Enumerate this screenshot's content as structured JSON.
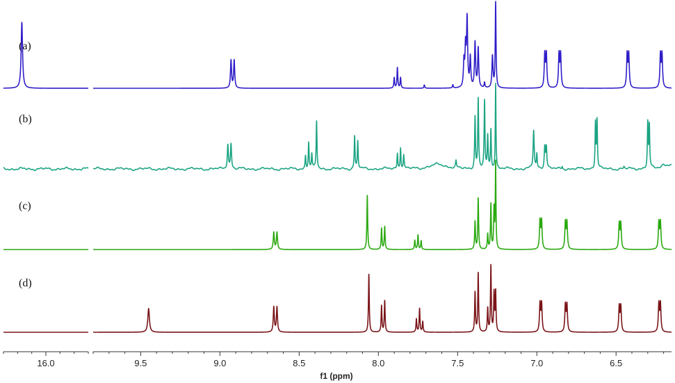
{
  "chart_data": {
    "type": "line",
    "title": "",
    "xlabel": "f1 (ppm)",
    "ylabel": "",
    "x_reversed": true,
    "axis_break": {
      "from": 15.7,
      "to": 9.8
    },
    "segments": [
      {
        "xlim": [
          16.3,
          15.7
        ]
      },
      {
        "xlim": [
          9.8,
          6.15
        ]
      }
    ],
    "ticks": [
      {
        "value": 16.0,
        "label": "16.0"
      },
      {
        "value": 9.5,
        "label": "9.5"
      },
      {
        "value": 9.0,
        "label": "9.0"
      },
      {
        "value": 8.5,
        "label": "8.5"
      },
      {
        "value": 8.0,
        "label": "8.0"
      },
      {
        "value": 7.5,
        "label": "7.5"
      },
      {
        "value": 7.0,
        "label": "7.0"
      },
      {
        "value": 6.5,
        "label": "6.5"
      }
    ],
    "grid": false,
    "series": [
      {
        "label": "(a)",
        "color": "#2f1ec8",
        "noise": 0,
        "peaks": [
          [
            16.17,
            1,
            0.006
          ],
          [
            8.93,
            0.42,
            0.004
          ],
          [
            8.91,
            0.42,
            0.004
          ],
          [
            7.9,
            0.16,
            0.003
          ],
          [
            7.88,
            0.31,
            0.003
          ],
          [
            7.86,
            0.16,
            0.003
          ],
          [
            7.71,
            0.05,
            0.003
          ],
          [
            7.53,
            0.05,
            0.003
          ],
          [
            7.46,
            0.38,
            0.004
          ],
          [
            7.45,
            0.58,
            0.004
          ],
          [
            7.44,
            1.02,
            0.004
          ],
          [
            7.42,
            0.45,
            0.004
          ],
          [
            7.39,
            0.68,
            0.004
          ],
          [
            7.37,
            0.6,
            0.004
          ],
          [
            7.33,
            0.08,
            0.003
          ],
          [
            7.28,
            0.48,
            0.004
          ],
          [
            7.26,
            1.3,
            0.003
          ],
          [
            6.95,
            0.5,
            0.004
          ],
          [
            6.94,
            0.5,
            0.004
          ],
          [
            6.86,
            0.5,
            0.004
          ],
          [
            6.85,
            0.5,
            0.004
          ],
          [
            6.43,
            0.5,
            0.004
          ],
          [
            6.42,
            0.5,
            0.004
          ],
          [
            6.22,
            0.5,
            0.004
          ],
          [
            6.21,
            0.5,
            0.004
          ]
        ]
      },
      {
        "label": "(b)",
        "color": "#1aa382",
        "noise": 1,
        "peaks": [
          [
            8.95,
            0.38,
            0.004
          ],
          [
            8.93,
            0.38,
            0.004
          ],
          [
            8.46,
            0.2,
            0.003
          ],
          [
            8.44,
            0.4,
            0.003
          ],
          [
            8.42,
            0.22,
            0.003
          ],
          [
            8.39,
            0.73,
            0.003
          ],
          [
            8.15,
            0.5,
            0.003
          ],
          [
            8.13,
            0.42,
            0.003
          ],
          [
            7.88,
            0.24,
            0.003
          ],
          [
            7.86,
            0.33,
            0.003
          ],
          [
            7.84,
            0.2,
            0.003
          ],
          [
            7.62,
            0.07,
            0.06
          ],
          [
            7.51,
            0.1,
            0.003
          ],
          [
            7.39,
            0.78,
            0.003
          ],
          [
            7.37,
            1.05,
            0.003
          ],
          [
            7.33,
            1.02,
            0.003
          ],
          [
            7.31,
            0.48,
            0.003
          ],
          [
            7.29,
            0.6,
            0.003
          ],
          [
            7.26,
            1.3,
            0.0025
          ],
          [
            7.02,
            0.58,
            0.004
          ],
          [
            7.0,
            0.22,
            0.003
          ],
          [
            6.95,
            0.33,
            0.004
          ],
          [
            6.94,
            0.33,
            0.004
          ],
          [
            6.84,
            0.04,
            0.003
          ],
          [
            6.63,
            0.7,
            0.003
          ],
          [
            6.62,
            0.72,
            0.003
          ],
          [
            6.3,
            0.68,
            0.003
          ],
          [
            6.29,
            0.64,
            0.003
          ],
          [
            6.45,
            0.03,
            0.003
          ],
          [
            6.2,
            0.04,
            0.01
          ],
          [
            6.17,
            0.06,
            0.04
          ]
        ]
      },
      {
        "label": "(c)",
        "color": "#2aa80f",
        "noise": 0,
        "peaks": [
          [
            8.66,
            0.26,
            0.004
          ],
          [
            8.64,
            0.26,
            0.004
          ],
          [
            8.07,
            0.82,
            0.003
          ],
          [
            7.98,
            0.32,
            0.003
          ],
          [
            7.96,
            0.35,
            0.003
          ],
          [
            7.77,
            0.14,
            0.003
          ],
          [
            7.75,
            0.22,
            0.003
          ],
          [
            7.73,
            0.13,
            0.003
          ],
          [
            7.39,
            0.42,
            0.003
          ],
          [
            7.37,
            0.78,
            0.003
          ],
          [
            7.31,
            0.23,
            0.003
          ],
          [
            7.29,
            0.68,
            0.003
          ],
          [
            7.27,
            0.6,
            0.003
          ],
          [
            7.26,
            1.3,
            0.0025
          ],
          [
            6.98,
            0.42,
            0.004
          ],
          [
            6.97,
            0.42,
            0.004
          ],
          [
            6.82,
            0.4,
            0.004
          ],
          [
            6.81,
            0.4,
            0.004
          ],
          [
            6.48,
            0.38,
            0.004
          ],
          [
            6.47,
            0.38,
            0.004
          ],
          [
            6.23,
            0.4,
            0.004
          ],
          [
            6.22,
            0.4,
            0.004
          ]
        ]
      },
      {
        "label": "(d)",
        "color": "#7a1418",
        "noise": 0,
        "peaks": [
          [
            9.45,
            0.36,
            0.006
          ],
          [
            8.66,
            0.38,
            0.004
          ],
          [
            8.64,
            0.38,
            0.004
          ],
          [
            8.06,
            0.88,
            0.003
          ],
          [
            7.98,
            0.4,
            0.003
          ],
          [
            7.96,
            0.48,
            0.003
          ],
          [
            7.76,
            0.2,
            0.003
          ],
          [
            7.74,
            0.36,
            0.003
          ],
          [
            7.72,
            0.16,
            0.003
          ],
          [
            7.39,
            0.6,
            0.003
          ],
          [
            7.37,
            0.9,
            0.003
          ],
          [
            7.31,
            0.36,
            0.003
          ],
          [
            7.29,
            1.0,
            0.003
          ],
          [
            7.27,
            0.58,
            0.003
          ],
          [
            7.26,
            0.6,
            0.003
          ],
          [
            6.98,
            0.42,
            0.004
          ],
          [
            6.97,
            0.42,
            0.004
          ],
          [
            6.82,
            0.4,
            0.004
          ],
          [
            6.81,
            0.4,
            0.004
          ],
          [
            6.48,
            0.38,
            0.004
          ],
          [
            6.47,
            0.38,
            0.004
          ],
          [
            6.23,
            0.42,
            0.004
          ],
          [
            6.22,
            0.42,
            0.004
          ]
        ]
      }
    ]
  }
}
